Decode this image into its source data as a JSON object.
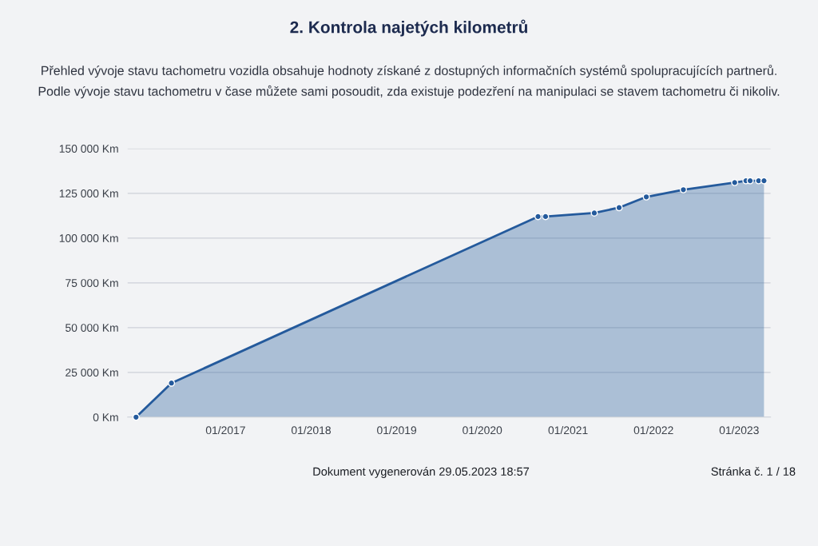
{
  "chart_data": {
    "type": "area",
    "title": "2. Kontrola najetých kilometrů",
    "subtitle": "Přehled vývoje stavu tachometru vozidla obsahuje hodnoty získané z dostupných informačních systémů spolupracujících partnerů.\nPodle vývoje stavu tachometru v čase můžete sami posoudit, zda existuje podezření na manipulaci se stavem tachometru či nikoliv.",
    "annotations": [
      "Dokument vygenerován 29.05.2023 18:57",
      "Stránka č. 1 / 18"
    ],
    "x": [
      "2015-12-16",
      "2016-05-15",
      "2020-08-26",
      "2020-09-27",
      "2021-04-23",
      "2021-08-07",
      "2021-12-01",
      "2022-05-08",
      "2022-12-13",
      "2023-01-30",
      "2023-02-17",
      "2023-03-25",
      "2023-04-17"
    ],
    "series": [
      {
        "color": "#245a9c",
        "values": [
          0,
          19000,
          112000,
          112000,
          114000,
          117000,
          123000,
          127000,
          131000,
          132000,
          132000,
          132000,
          132000
        ]
      }
    ],
    "xlim": [
      "2015-11-10",
      "2023-05-15"
    ],
    "xticks": [
      {
        "value": "2017-01",
        "label": "01/2017"
      },
      {
        "value": "2018-01",
        "label": "01/2018"
      },
      {
        "value": "2019-01",
        "label": "01/2019"
      },
      {
        "value": "2020-01",
        "label": "01/2020"
      },
      {
        "value": "2021-01",
        "label": "01/2021"
      },
      {
        "value": "2022-01",
        "label": "01/2022"
      },
      {
        "value": "2023-01",
        "label": "01/2023"
      }
    ],
    "ylim": [
      0,
      150000
    ],
    "yticks": [
      {
        "value": 0,
        "label": "0 Km"
      },
      {
        "value": 25000,
        "label": "25 000 Km"
      },
      {
        "value": 50000,
        "label": "50 000 Km"
      },
      {
        "value": 75000,
        "label": "75 000 Km"
      },
      {
        "value": 100000,
        "label": "100 000 Km"
      },
      {
        "value": 125000,
        "label": "125 000 Km"
      },
      {
        "value": 150000,
        "label": "150 000 Km"
      }
    ],
    "grid": "y",
    "marker": "circle",
    "line_style": "solid"
  }
}
